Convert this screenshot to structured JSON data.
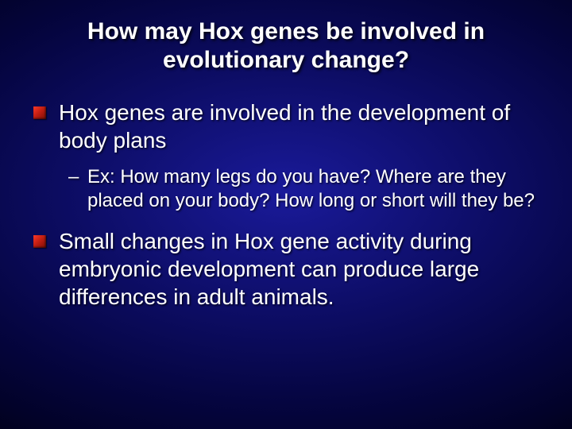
{
  "slide": {
    "background": {
      "gradient_center": "#1a1a9a",
      "gradient_mid": "#0d0d66",
      "gradient_outer": "#050540",
      "gradient_edge": "#000018"
    },
    "title": {
      "text": "How may Hox genes be involved in evolutionary change?",
      "fontsize": 30,
      "fontweight": "bold",
      "color": "#ffffff",
      "align": "center"
    },
    "bullets": [
      {
        "level": 1,
        "text": "Hox genes are involved in the development of body plans",
        "marker": "red-square",
        "marker_color_top": "#ff3a2a",
        "marker_color_bottom": "#7a0e06",
        "fontsize": 28,
        "color": "#ffffff"
      },
      {
        "level": 2,
        "text": "Ex:  How many legs do you have? Where are they placed on your body?  How long or short will they be?",
        "marker": "dash",
        "fontsize": 24,
        "color": "#ffffff"
      },
      {
        "level": 1,
        "text": "Small changes in Hox gene activity during embryonic development can produce large differences in adult animals.",
        "marker": "red-square",
        "marker_color_top": "#ff3a2a",
        "marker_color_bottom": "#7a0e06",
        "fontsize": 28,
        "color": "#ffffff"
      }
    ],
    "typography": {
      "font_family": "Arial",
      "text_shadow_color": "rgba(0,0,0,0.8)"
    }
  }
}
